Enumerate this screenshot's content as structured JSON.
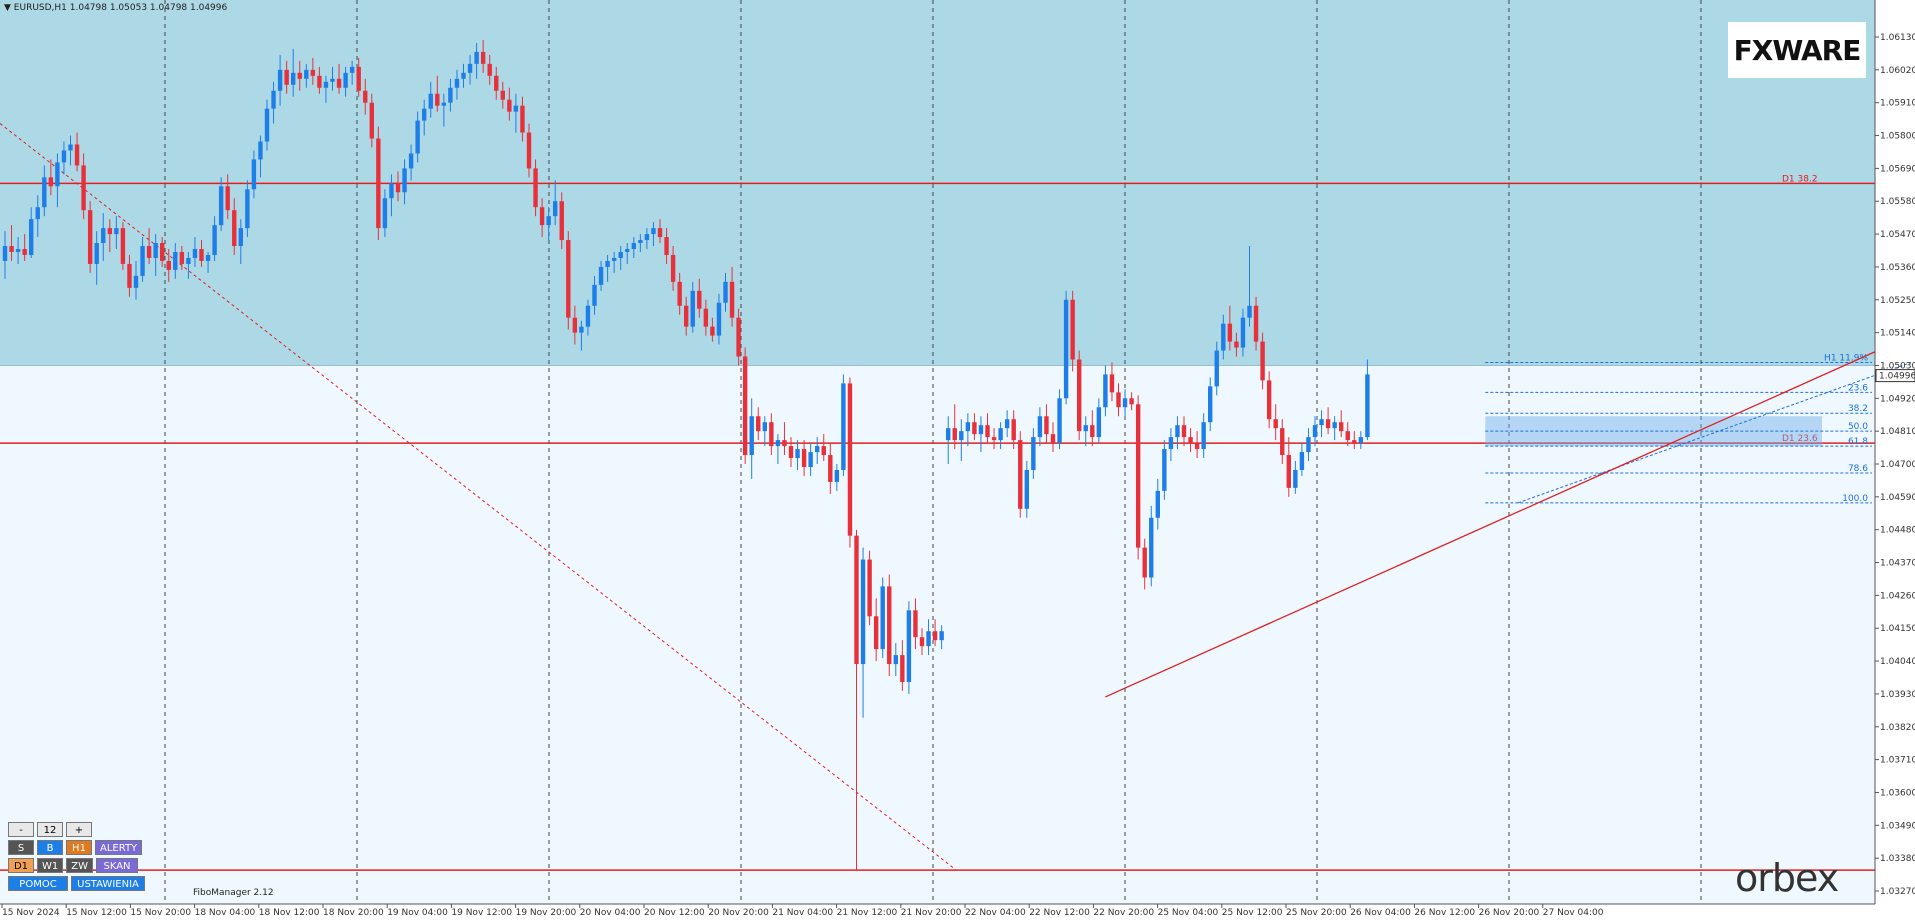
{
  "header": {
    "symbol_line": "EURUSD,H1  1.04798 1.05053 1.04798 1.04996"
  },
  "logos": {
    "fxware": "FXWARE",
    "orbex": "orbex"
  },
  "colors": {
    "zone": "#add8e6",
    "background": "#f0f8ff",
    "bull": "#1e7ee8",
    "bear": "#e8303a",
    "level": "#e02020",
    "fib": "#1e6fd9"
  },
  "panel": {
    "minus": "-",
    "value": "12",
    "plus": "+",
    "row1": [
      "S",
      "B",
      "H1",
      "ALERTY"
    ],
    "row2": [
      "D1",
      "W1",
      "ZW",
      "SKAN"
    ],
    "row3": [
      "POMOC",
      "USTAWIENIA"
    ],
    "fibo_manager": "FiboManager 2.12"
  },
  "chart_data": {
    "type": "candlestick",
    "symbol": "EURUSD",
    "timeframe": "H1",
    "ylim": [
      1.0327,
      1.0613
    ],
    "y_ticks": [
      "1.06130",
      "1.06020",
      "1.05910",
      "1.05800",
      "1.05690",
      "1.05580",
      "1.05470",
      "1.05360",
      "1.05250",
      "1.05140",
      "1.05030",
      "1.04920",
      "1.04810",
      "1.04700",
      "1.04590",
      "1.04480",
      "1.04370",
      "1.04260",
      "1.04150",
      "1.04040",
      "1.03930",
      "1.03820",
      "1.03710",
      "1.03600",
      "1.03490",
      "1.03380",
      "1.03270"
    ],
    "current_price": "1.04996",
    "x_labels": [
      "15 Nov 2024",
      "15 Nov 12:00",
      "15 Nov 20:00",
      "18 Nov 04:00",
      "18 Nov 12:00",
      "18 Nov 20:00",
      "19 Nov 04:00",
      "19 Nov 12:00",
      "19 Nov 20:00",
      "20 Nov 04:00",
      "20 Nov 12:00",
      "20 Nov 20:00",
      "21 Nov 04:00",
      "21 Nov 12:00",
      "21 Nov 20:00",
      "22 Nov 04:00",
      "22 Nov 12:00",
      "22 Nov 20:00",
      "25 Nov 04:00",
      "25 Nov 12:00",
      "25 Nov 20:00",
      "26 Nov 04:00",
      "26 Nov 12:00",
      "26 Nov 20:00",
      "27 Nov 04:00"
    ],
    "zone": {
      "top": 1.0613,
      "bottom": 1.0503
    },
    "levels": [
      {
        "label": "D1 38.2",
        "price": 1.0564
      },
      {
        "label": "D1 23.6",
        "price": 1.0477
      },
      {
        "label": "",
        "price": 1.0334
      }
    ],
    "fib_levels": [
      {
        "label": "H1 11.9%",
        "price": 1.0504
      },
      {
        "label": "23.6",
        "price": 1.0494
      },
      {
        "label": "38.2",
        "price": 1.0487
      },
      {
        "label": "50.0",
        "price": 1.0481
      },
      {
        "label": "61.8",
        "price": 1.0476
      },
      {
        "label": "78.6",
        "price": 1.0467
      },
      {
        "label": "100.0",
        "price": 1.0457
      }
    ],
    "fib_zone": {
      "top": 1.0486,
      "bottom": 1.0476
    },
    "trendline": {
      "start": {
        "bar": 168,
        "price": 1.0392
      },
      "end": {
        "bar": 292,
        "price": 1.0514
      }
    },
    "diagonal": {
      "start": {
        "bar": 0,
        "price": 1.0574
      },
      "end": {
        "bar": 144,
        "price": 1.0334
      }
    },
    "candles": [
      [
        1.0538,
        1.0548,
        1.0532,
        1.0543
      ],
      [
        1.0543,
        1.055,
        1.0538,
        1.0541
      ],
      [
        1.0541,
        1.0546,
        1.0537,
        1.0542
      ],
      [
        1.0542,
        1.0547,
        1.0538,
        1.054
      ],
      [
        1.054,
        1.0556,
        1.0539,
        1.0552
      ],
      [
        1.0552,
        1.056,
        1.0546,
        1.0556
      ],
      [
        1.0556,
        1.057,
        1.0553,
        1.0566
      ],
      [
        1.0566,
        1.0572,
        1.056,
        1.0563
      ],
      [
        1.0563,
        1.0574,
        1.0556,
        1.0571
      ],
      [
        1.0571,
        1.0578,
        1.0567,
        1.0575
      ],
      [
        1.0575,
        1.058,
        1.057,
        1.0577
      ],
      [
        1.0577,
        1.0581,
        1.0568,
        1.057
      ],
      [
        1.057,
        1.0574,
        1.0552,
        1.0555
      ],
      [
        1.0555,
        1.0558,
        1.0534,
        1.0537
      ],
      [
        1.0537,
        1.0548,
        1.053,
        1.0544
      ],
      [
        1.0544,
        1.0554,
        1.0538,
        1.0549
      ],
      [
        1.0549,
        1.0552,
        1.0541,
        1.0547
      ],
      [
        1.0547,
        1.0553,
        1.0542,
        1.0549
      ],
      [
        1.0549,
        1.0551,
        1.0535,
        1.0537
      ],
      [
        1.0537,
        1.054,
        1.0526,
        1.0529
      ],
      [
        1.0529,
        1.0538,
        1.0525,
        1.0533
      ],
      [
        1.0533,
        1.0546,
        1.0531,
        1.0543
      ],
      [
        1.0543,
        1.0549,
        1.0537,
        1.0539
      ],
      [
        1.0539,
        1.0547,
        1.0533,
        1.0544
      ],
      [
        1.0544,
        1.0546,
        1.0536,
        1.0538
      ],
      [
        1.0538,
        1.0542,
        1.0531,
        1.0535
      ],
      [
        1.0535,
        1.0544,
        1.0532,
        1.0541
      ],
      [
        1.0541,
        1.0543,
        1.0535,
        1.0537
      ],
      [
        1.0537,
        1.0541,
        1.0532,
        1.0539
      ],
      [
        1.0539,
        1.0546,
        1.0536,
        1.0542
      ],
      [
        1.0542,
        1.0545,
        1.0536,
        1.0538
      ],
      [
        1.0538,
        1.0541,
        1.0534,
        1.054
      ],
      [
        1.054,
        1.0553,
        1.0538,
        1.055
      ],
      [
        1.055,
        1.0566,
        1.0548,
        1.0563
      ],
      [
        1.0563,
        1.0567,
        1.0552,
        1.0555
      ],
      [
        1.0555,
        1.0559,
        1.054,
        1.0543
      ],
      [
        1.0543,
        1.0552,
        1.0537,
        1.0549
      ],
      [
        1.0549,
        1.0565,
        1.0546,
        1.0562
      ],
      [
        1.0562,
        1.0575,
        1.0559,
        1.0572
      ],
      [
        1.0572,
        1.058,
        1.0566,
        1.0578
      ],
      [
        1.0578,
        1.0592,
        1.0575,
        1.0589
      ],
      [
        1.0589,
        1.0598,
        1.0584,
        1.0595
      ],
      [
        1.0595,
        1.0607,
        1.059,
        1.0602
      ],
      [
        1.0602,
        1.0605,
        1.0594,
        1.0597
      ],
      [
        1.0597,
        1.0609,
        1.0593,
        1.0601
      ],
      [
        1.0601,
        1.0605,
        1.0595,
        1.0599
      ],
      [
        1.0599,
        1.0604,
        1.0596,
        1.0602
      ],
      [
        1.0602,
        1.0606,
        1.0597,
        1.06
      ],
      [
        1.06,
        1.0603,
        1.0594,
        1.0596
      ],
      [
        1.0596,
        1.06,
        1.0591,
        1.0598
      ],
      [
        1.0598,
        1.0603,
        1.0595,
        1.0599
      ],
      [
        1.0599,
        1.0604,
        1.0594,
        1.0596
      ],
      [
        1.0596,
        1.0603,
        1.0593,
        1.0601
      ],
      [
        1.0601,
        1.0605,
        1.0597,
        1.0603
      ],
      [
        1.0603,
        1.0606,
        1.0593,
        1.0595
      ],
      [
        1.0595,
        1.0599,
        1.0587,
        1.0591
      ],
      [
        1.0591,
        1.0594,
        1.0576,
        1.0579
      ],
      [
        1.0579,
        1.0583,
        1.0545,
        1.0549
      ],
      [
        1.0549,
        1.0562,
        1.0546,
        1.0559
      ],
      [
        1.0559,
        1.0567,
        1.0553,
        1.0564
      ],
      [
        1.0564,
        1.0568,
        1.0558,
        1.0561
      ],
      [
        1.0561,
        1.0572,
        1.0557,
        1.0569
      ],
      [
        1.0569,
        1.0577,
        1.0565,
        1.0574
      ],
      [
        1.0574,
        1.0588,
        1.0571,
        1.0585
      ],
      [
        1.0585,
        1.0592,
        1.058,
        1.0589
      ],
      [
        1.0589,
        1.0598,
        1.0586,
        1.0594
      ],
      [
        1.0594,
        1.06,
        1.0588,
        1.059
      ],
      [
        1.059,
        1.0594,
        1.0583,
        1.0591
      ],
      [
        1.0591,
        1.0599,
        1.0588,
        1.0596
      ],
      [
        1.0596,
        1.0602,
        1.0592,
        1.0599
      ],
      [
        1.0599,
        1.0604,
        1.0596,
        1.0601
      ],
      [
        1.0601,
        1.0607,
        1.0597,
        1.0604
      ],
      [
        1.0604,
        1.0611,
        1.0599,
        1.0608
      ],
      [
        1.0608,
        1.0612,
        1.0601,
        1.0604
      ],
      [
        1.0604,
        1.0607,
        1.0597,
        1.06
      ],
      [
        1.06,
        1.0603,
        1.0592,
        1.0595
      ],
      [
        1.0595,
        1.0598,
        1.0589,
        1.0592
      ],
      [
        1.0592,
        1.0596,
        1.0585,
        1.0588
      ],
      [
        1.0588,
        1.0594,
        1.0581,
        1.059
      ],
      [
        1.059,
        1.0593,
        1.0578,
        1.0581
      ],
      [
        1.0581,
        1.0584,
        1.0566,
        1.0569
      ],
      [
        1.0569,
        1.0572,
        1.0553,
        1.0556
      ],
      [
        1.0556,
        1.0559,
        1.0546,
        1.055
      ],
      [
        1.055,
        1.0556,
        1.0545,
        1.0553
      ],
      [
        1.0553,
        1.0565,
        1.055,
        1.0558
      ],
      [
        1.0558,
        1.0561,
        1.0542,
        1.0545
      ],
      [
        1.0545,
        1.0548,
        1.0515,
        1.0519
      ],
      [
        1.0519,
        1.0523,
        1.051,
        1.0514
      ],
      [
        1.0514,
        1.0518,
        1.0508,
        1.0516
      ],
      [
        1.0516,
        1.0525,
        1.0513,
        1.0523
      ],
      [
        1.0523,
        1.0533,
        1.052,
        1.053
      ],
      [
        1.053,
        1.0538,
        1.0528,
        1.0536
      ],
      [
        1.0536,
        1.054,
        1.0531,
        1.0538
      ],
      [
        1.0538,
        1.0541,
        1.0534,
        1.0539
      ],
      [
        1.0539,
        1.0543,
        1.0535,
        1.0541
      ],
      [
        1.0541,
        1.0544,
        1.0537,
        1.0542
      ],
      [
        1.0542,
        1.0546,
        1.0539,
        1.0544
      ],
      [
        1.0544,
        1.0547,
        1.0541,
        1.0545
      ],
      [
        1.0545,
        1.0549,
        1.0542,
        1.0547
      ],
      [
        1.0547,
        1.0551,
        1.0543,
        1.0549
      ],
      [
        1.0549,
        1.0552,
        1.0544,
        1.0546
      ],
      [
        1.0546,
        1.0549,
        1.0537,
        1.054
      ],
      [
        1.054,
        1.0543,
        1.0528,
        1.0531
      ],
      [
        1.0531,
        1.0534,
        1.052,
        1.0523
      ],
      [
        1.0523,
        1.0526,
        1.0513,
        1.0516
      ],
      [
        1.0516,
        1.0531,
        1.0514,
        1.0528
      ],
      [
        1.0528,
        1.0532,
        1.0519,
        1.0522
      ],
      [
        1.0522,
        1.0525,
        1.0513,
        1.0516
      ],
      [
        1.0516,
        1.0519,
        1.0511,
        1.0513
      ],
      [
        1.0513,
        1.0527,
        1.051,
        1.0524
      ],
      [
        1.0524,
        1.0534,
        1.0521,
        1.0531
      ],
      [
        1.0531,
        1.0536,
        1.0516,
        1.0519
      ],
      [
        1.0519,
        1.0522,
        1.0503,
        1.0506
      ],
      [
        1.0506,
        1.0509,
        1.047,
        1.0473
      ],
      [
        1.0473,
        1.0492,
        1.0465,
        1.0486
      ],
      [
        1.0486,
        1.0489,
        1.0478,
        1.0481
      ],
      [
        1.0481,
        1.0486,
        1.0476,
        1.0484
      ],
      [
        1.0484,
        1.0487,
        1.0473,
        1.0476
      ],
      [
        1.0476,
        1.048,
        1.047,
        1.0478
      ],
      [
        1.0478,
        1.0484,
        1.0473,
        1.0476
      ],
      [
        1.0476,
        1.0479,
        1.0469,
        1.0472
      ],
      [
        1.0472,
        1.0478,
        1.0468,
        1.0475
      ],
      [
        1.0475,
        1.0478,
        1.0466,
        1.0469
      ],
      [
        1.0469,
        1.0477,
        1.0466,
        1.0474
      ],
      [
        1.0474,
        1.0479,
        1.047,
        1.0476
      ],
      [
        1.0476,
        1.048,
        1.0471,
        1.0473
      ],
      [
        1.0473,
        1.0477,
        1.046,
        1.0464
      ],
      [
        1.0464,
        1.047,
        1.0461,
        1.0468
      ],
      [
        1.0468,
        1.05,
        1.0466,
        1.0497
      ],
      [
        1.0497,
        1.0499,
        1.0442,
        1.0446
      ],
      [
        1.0446,
        1.0448,
        1.0334,
        1.0403
      ],
      [
        1.0403,
        1.0442,
        1.0385,
        1.0438
      ],
      [
        1.0438,
        1.0441,
        1.0416,
        1.0419
      ],
      [
        1.0419,
        1.0425,
        1.0404,
        1.0408
      ],
      [
        1.0408,
        1.0432,
        1.0405,
        1.0429
      ],
      [
        1.0429,
        1.0433,
        1.0399,
        1.0403
      ],
      [
        1.0403,
        1.041,
        1.0399,
        1.0406
      ],
      [
        1.0406,
        1.0411,
        1.0394,
        1.0397
      ],
      [
        1.0397,
        1.0424,
        1.0393,
        1.0421
      ],
      [
        1.0421,
        1.0425,
        1.0408,
        1.0412
      ],
      [
        1.0412,
        1.0415,
        1.0406,
        1.0409
      ],
      [
        1.0409,
        1.0418,
        1.0406,
        1.0414
      ],
      [
        1.0414,
        1.0418,
        1.0409,
        1.0411
      ],
      [
        1.0411,
        1.0416,
        1.0408,
        1.0414
      ],
      [
        1.0478,
        1.0486,
        1.047,
        1.0482
      ],
      [
        1.0482,
        1.049,
        1.0475,
        1.0478
      ],
      [
        1.0478,
        1.0485,
        1.0471,
        1.0481
      ],
      [
        1.0481,
        1.0487,
        1.0476,
        1.0484
      ],
      [
        1.0484,
        1.0487,
        1.0478,
        1.048
      ],
      [
        1.048,
        1.0486,
        1.0474,
        1.0483
      ],
      [
        1.0483,
        1.0487,
        1.0477,
        1.0479
      ],
      [
        1.0479,
        1.0482,
        1.0475,
        1.0478
      ],
      [
        1.0478,
        1.0484,
        1.0475,
        1.0482
      ],
      [
        1.0482,
        1.0488,
        1.0479,
        1.0485
      ],
      [
        1.0485,
        1.0488,
        1.0475,
        1.0478
      ],
      [
        1.0478,
        1.0481,
        1.0452,
        1.0455
      ],
      [
        1.0455,
        1.0471,
        1.0452,
        1.0468
      ],
      [
        1.0468,
        1.0482,
        1.0465,
        1.0479
      ],
      [
        1.0479,
        1.0489,
        1.0476,
        1.0486
      ],
      [
        1.0486,
        1.049,
        1.0477,
        1.048
      ],
      [
        1.048,
        1.0484,
        1.0474,
        1.0477
      ],
      [
        1.0477,
        1.0495,
        1.0475,
        1.0492
      ],
      [
        1.0492,
        1.0528,
        1.049,
        1.0525
      ],
      [
        1.0525,
        1.0528,
        1.0501,
        1.0505
      ],
      [
        1.0505,
        1.0508,
        1.0478,
        1.0481
      ],
      [
        1.0481,
        1.0486,
        1.0476,
        1.0483
      ],
      [
        1.0483,
        1.0488,
        1.0476,
        1.0479
      ],
      [
        1.0479,
        1.0492,
        1.0477,
        1.0489
      ],
      [
        1.0489,
        1.0503,
        1.0486,
        1.05
      ],
      [
        1.05,
        1.0504,
        1.0491,
        1.0494
      ],
      [
        1.0494,
        1.0497,
        1.0486,
        1.0489
      ],
      [
        1.0489,
        1.0495,
        1.0486,
        1.0492
      ],
      [
        1.0492,
        1.0494,
        1.0488,
        1.049
      ],
      [
        1.049,
        1.0493,
        1.0438,
        1.0442
      ],
      [
        1.0442,
        1.0445,
        1.0428,
        1.0432
      ],
      [
        1.0432,
        1.0456,
        1.0429,
        1.0452
      ],
      [
        1.0452,
        1.0465,
        1.0448,
        1.0461
      ],
      [
        1.0461,
        1.0478,
        1.0458,
        1.0475
      ],
      [
        1.0475,
        1.0482,
        1.0471,
        1.0479
      ],
      [
        1.0479,
        1.0486,
        1.0475,
        1.0483
      ],
      [
        1.0483,
        1.0486,
        1.0476,
        1.0479
      ],
      [
        1.0479,
        1.0482,
        1.0474,
        1.0477
      ],
      [
        1.0477,
        1.0481,
        1.0472,
        1.0475
      ],
      [
        1.0475,
        1.0487,
        1.0472,
        1.0484
      ],
      [
        1.0484,
        1.0499,
        1.0481,
        1.0496
      ],
      [
        1.0496,
        1.0511,
        1.0493,
        1.0508
      ],
      [
        1.0508,
        1.052,
        1.0505,
        1.0517
      ],
      [
        1.0517,
        1.0523,
        1.0508,
        1.0511
      ],
      [
        1.0511,
        1.0514,
        1.0506,
        1.0509
      ],
      [
        1.0509,
        1.0522,
        1.0506,
        1.0519
      ],
      [
        1.0519,
        1.0543,
        1.0516,
        1.0523
      ],
      [
        1.0523,
        1.0526,
        1.0508,
        1.0511
      ],
      [
        1.0511,
        1.0514,
        1.0495,
        1.0498
      ],
      [
        1.0498,
        1.0501,
        1.0482,
        1.0485
      ],
      [
        1.0485,
        1.049,
        1.0478,
        1.0482
      ],
      [
        1.0482,
        1.0485,
        1.047,
        1.0473
      ],
      [
        1.0473,
        1.0479,
        1.0459,
        1.0462
      ],
      [
        1.0462,
        1.0471,
        1.046,
        1.0468
      ],
      [
        1.0468,
        1.0477,
        1.0466,
        1.0474
      ],
      [
        1.0474,
        1.0482,
        1.0471,
        1.0479
      ],
      [
        1.0479,
        1.0486,
        1.0476,
        1.0483
      ],
      [
        1.0483,
        1.0488,
        1.0479,
        1.0485
      ],
      [
        1.0485,
        1.0489,
        1.048,
        1.0482
      ],
      [
        1.0482,
        1.0486,
        1.0478,
        1.0484
      ],
      [
        1.0484,
        1.0488,
        1.0479,
        1.0481
      ],
      [
        1.0481,
        1.0484,
        1.0476,
        1.0478
      ],
      [
        1.0478,
        1.0481,
        1.0475,
        1.0477
      ],
      [
        1.0477,
        1.0481,
        1.0475,
        1.0479
      ],
      [
        1.0479,
        1.0505,
        1.0478,
        1.05
      ]
    ]
  }
}
